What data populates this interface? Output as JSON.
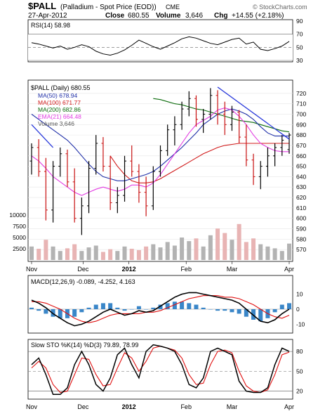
{
  "header": {
    "symbol": "$PALL",
    "description": "(Palladium - Spot Price (EOD))",
    "exchange": "CME",
    "date": "27-Apr-2012",
    "close_label": "Close",
    "close_value": "680.55",
    "volume_label": "Volume",
    "volume_value": "3,646",
    "chg_label": "Chg",
    "chg_value": "+14.55 (+2.18%)",
    "watermark": "© StockCharts.com"
  },
  "chart_data": [
    {
      "type": "line",
      "panel": "rsi",
      "title": "RSI(14) 58.98",
      "ylim": [
        30,
        90
      ],
      "yticks": [
        90,
        70,
        50,
        30
      ],
      "reference_lines": [
        70,
        50,
        30
      ],
      "series": [
        {
          "name": "RSI(14)",
          "color": "#000000",
          "values": [
            57,
            55,
            52,
            49,
            52,
            47,
            50,
            54,
            51,
            44,
            40,
            38,
            41,
            46,
            53,
            61,
            56,
            51,
            47,
            52,
            57,
            63,
            66,
            64,
            60,
            56,
            54,
            58,
            62,
            64,
            55,
            58,
            47,
            45,
            48,
            52,
            59
          ]
        }
      ]
    },
    {
      "type": "ohlc+line+bar",
      "panel": "price",
      "ylim": [
        560,
        730
      ],
      "yticks": [
        720,
        710,
        700,
        690,
        680,
        670,
        660,
        650,
        640,
        630,
        620,
        610,
        600,
        590,
        580,
        570
      ],
      "volume_ticks": [
        10000,
        7500,
        5000,
        2500
      ],
      "legend": [
        {
          "label": "$PALL (Daily) 680.55",
          "color": "#000000"
        },
        {
          "label": "MA(50) 678.94",
          "color": "#1f2fa8"
        },
        {
          "label": "MA(100) 671.77",
          "color": "#d11a1a"
        },
        {
          "label": "MA(200) 682.86",
          "color": "#0b6b0b"
        },
        {
          "label": "EMA(21) 664.48",
          "color": "#e23ce2"
        },
        {
          "label": "Volume 3,646",
          "color": "#808080"
        }
      ],
      "x_labels": [
        "Nov",
        "Dec",
        "2012",
        "Feb",
        "Mar",
        "Apr"
      ],
      "price_bars": [
        {
          "o": 655,
          "h": 672,
          "l": 642,
          "c": 668
        },
        {
          "o": 668,
          "h": 676,
          "l": 640,
          "c": 645
        },
        {
          "o": 645,
          "h": 658,
          "l": 598,
          "c": 608
        },
        {
          "o": 608,
          "h": 655,
          "l": 596,
          "c": 650
        },
        {
          "o": 650,
          "h": 668,
          "l": 640,
          "c": 662
        },
        {
          "o": 662,
          "h": 666,
          "l": 630,
          "c": 635
        },
        {
          "o": 635,
          "h": 648,
          "l": 596,
          "c": 600
        },
        {
          "o": 600,
          "h": 620,
          "l": 584,
          "c": 612
        },
        {
          "o": 612,
          "h": 655,
          "l": 605,
          "c": 648
        },
        {
          "o": 648,
          "h": 680,
          "l": 642,
          "c": 672
        },
        {
          "o": 672,
          "h": 678,
          "l": 645,
          "c": 650
        },
        {
          "o": 650,
          "h": 660,
          "l": 608,
          "c": 615
        },
        {
          "o": 615,
          "h": 630,
          "l": 605,
          "c": 622
        },
        {
          "o": 622,
          "h": 660,
          "l": 616,
          "c": 655
        },
        {
          "o": 655,
          "h": 670,
          "l": 640,
          "c": 645
        },
        {
          "o": 645,
          "h": 652,
          "l": 615,
          "c": 625
        },
        {
          "o": 625,
          "h": 640,
          "l": 602,
          "c": 612
        },
        {
          "o": 612,
          "h": 650,
          "l": 608,
          "c": 645
        },
        {
          "o": 645,
          "h": 670,
          "l": 640,
          "c": 665
        },
        {
          "o": 665,
          "h": 690,
          "l": 660,
          "c": 685
        },
        {
          "o": 685,
          "h": 698,
          "l": 670,
          "c": 690
        },
        {
          "o": 690,
          "h": 712,
          "l": 685,
          "c": 705
        },
        {
          "o": 705,
          "h": 722,
          "l": 698,
          "c": 715
        },
        {
          "o": 715,
          "h": 718,
          "l": 688,
          "c": 695
        },
        {
          "o": 695,
          "h": 705,
          "l": 682,
          "c": 700
        },
        {
          "o": 700,
          "h": 725,
          "l": 695,
          "c": 718
        },
        {
          "o": 718,
          "h": 723,
          "l": 690,
          "c": 700
        },
        {
          "o": 700,
          "h": 712,
          "l": 680,
          "c": 690
        },
        {
          "o": 690,
          "h": 708,
          "l": 684,
          "c": 702
        },
        {
          "o": 702,
          "h": 704,
          "l": 672,
          "c": 678
        },
        {
          "o": 678,
          "h": 690,
          "l": 650,
          "c": 656
        },
        {
          "o": 656,
          "h": 662,
          "l": 632,
          "c": 640
        },
        {
          "o": 640,
          "h": 655,
          "l": 628,
          "c": 650
        },
        {
          "o": 650,
          "h": 668,
          "l": 640,
          "c": 660
        },
        {
          "o": 660,
          "h": 672,
          "l": 650,
          "c": 668
        },
        {
          "o": 668,
          "h": 680,
          "l": 660,
          "c": 675
        },
        {
          "o": 666,
          "h": 682,
          "l": 662,
          "c": 680
        }
      ],
      "ma50": [
        700,
        695,
        690,
        685,
        680,
        675,
        668,
        660,
        652,
        645,
        640,
        638,
        636,
        636,
        638,
        640,
        642,
        645,
        650,
        656,
        662,
        668,
        675,
        682,
        690,
        695,
        700,
        703,
        705,
        703,
        700,
        695,
        688,
        682,
        679,
        679,
        679
      ],
      "ma100": [
        null,
        null,
        null,
        null,
        null,
        null,
        null,
        null,
        null,
        null,
        null,
        660,
        650,
        642,
        636,
        634,
        634,
        635,
        638,
        642,
        646,
        650,
        654,
        658,
        662,
        665,
        668,
        670,
        671,
        672,
        672,
        672,
        672,
        672,
        672,
        672,
        672
      ],
      "ma200": [
        null,
        null,
        null,
        null,
        null,
        null,
        null,
        null,
        null,
        null,
        null,
        null,
        null,
        null,
        null,
        null,
        null,
        715,
        714,
        712,
        710,
        709,
        707,
        705,
        704,
        702,
        700,
        698,
        696,
        694,
        693,
        692,
        690,
        688,
        686,
        684,
        683
      ],
      "ema21": [
        660,
        655,
        648,
        640,
        635,
        630,
        625,
        622,
        625,
        628,
        630,
        628,
        626,
        628,
        632,
        632,
        630,
        634,
        642,
        652,
        662,
        672,
        682,
        690,
        694,
        698,
        704,
        706,
        704,
        698,
        690,
        680,
        672,
        668,
        665,
        664,
        664
      ],
      "volume": [
        3000,
        2500,
        4500,
        3000,
        2000,
        2600,
        3500,
        2000,
        2800,
        3200,
        1800,
        2400,
        2000,
        3000,
        2500,
        2200,
        3000,
        3500,
        2800,
        4000,
        3200,
        5000,
        4200,
        4800,
        3000,
        5500,
        7000,
        6000,
        4500,
        8000,
        4000,
        4800,
        3500,
        3000,
        2600,
        2000,
        3646
      ],
      "trendlines": [
        {
          "name": "upper",
          "color": "#2a3adb",
          "from": {
            "i": 26,
            "v": 726
          },
          "to": {
            "i": 36,
            "v": 676
          }
        },
        {
          "name": "lower",
          "color": "#2a3adb",
          "from": {
            "i": 0,
            "v": 690
          },
          "to": {
            "i": 3,
            "v": 668
          }
        }
      ]
    },
    {
      "type": "line",
      "panel": "macd",
      "title": "MACD(12,26,9) -0.089, -4.252, 4.163",
      "ylim": [
        -14,
        14
      ],
      "yticks": [
        10,
        0,
        -10
      ],
      "series": [
        {
          "name": "MACD",
          "color": "#000000",
          "values": [
            6,
            4,
            1,
            -3,
            -6,
            -9,
            -11,
            -10,
            -8,
            -5,
            -2,
            0,
            -2,
            -4,
            -3,
            -1,
            -2,
            -1,
            2,
            5,
            8,
            10,
            11,
            11,
            10,
            9,
            8,
            7,
            6,
            4,
            0,
            -4,
            -8,
            -9,
            -7,
            -3,
            0
          ]
        },
        {
          "name": "Signal",
          "color": "#e01010",
          "values": [
            5,
            5,
            4,
            2,
            0,
            -3,
            -6,
            -8,
            -9,
            -8,
            -6,
            -4,
            -3,
            -3,
            -3,
            -3,
            -2,
            -2,
            -1,
            1,
            3,
            5,
            7,
            8,
            9,
            9,
            9,
            8,
            8,
            7,
            5,
            3,
            0,
            -3,
            -5,
            -6,
            -4
          ]
        }
      ]
    },
    {
      "type": "line",
      "panel": "sto",
      "title": "Slow STO %K(14) %D(3) 79.89, 78.99",
      "ylim": [
        10,
        95
      ],
      "yticks": [
        80,
        50,
        20
      ],
      "reference_lines": [
        80,
        20
      ],
      "series": [
        {
          "name": "%K",
          "color": "#000000",
          "values": [
            60,
            70,
            45,
            15,
            15,
            25,
            60,
            80,
            60,
            30,
            20,
            40,
            75,
            85,
            60,
            40,
            80,
            90,
            88,
            85,
            80,
            60,
            30,
            25,
            40,
            80,
            85,
            80,
            75,
            35,
            20,
            18,
            18,
            25,
            60,
            85,
            80
          ]
        },
        {
          "name": "%D",
          "color": "#e01010",
          "values": [
            55,
            65,
            55,
            30,
            18,
            20,
            45,
            70,
            68,
            45,
            28,
            30,
            55,
            78,
            70,
            50,
            65,
            85,
            88,
            85,
            82,
            70,
            45,
            30,
            32,
            60,
            80,
            82,
            78,
            50,
            28,
            20,
            18,
            22,
            45,
            75,
            79
          ]
        }
      ],
      "x_labels": [
        "Nov",
        "Dec",
        "2012",
        "Feb",
        "Mar",
        "Apr"
      ]
    }
  ]
}
